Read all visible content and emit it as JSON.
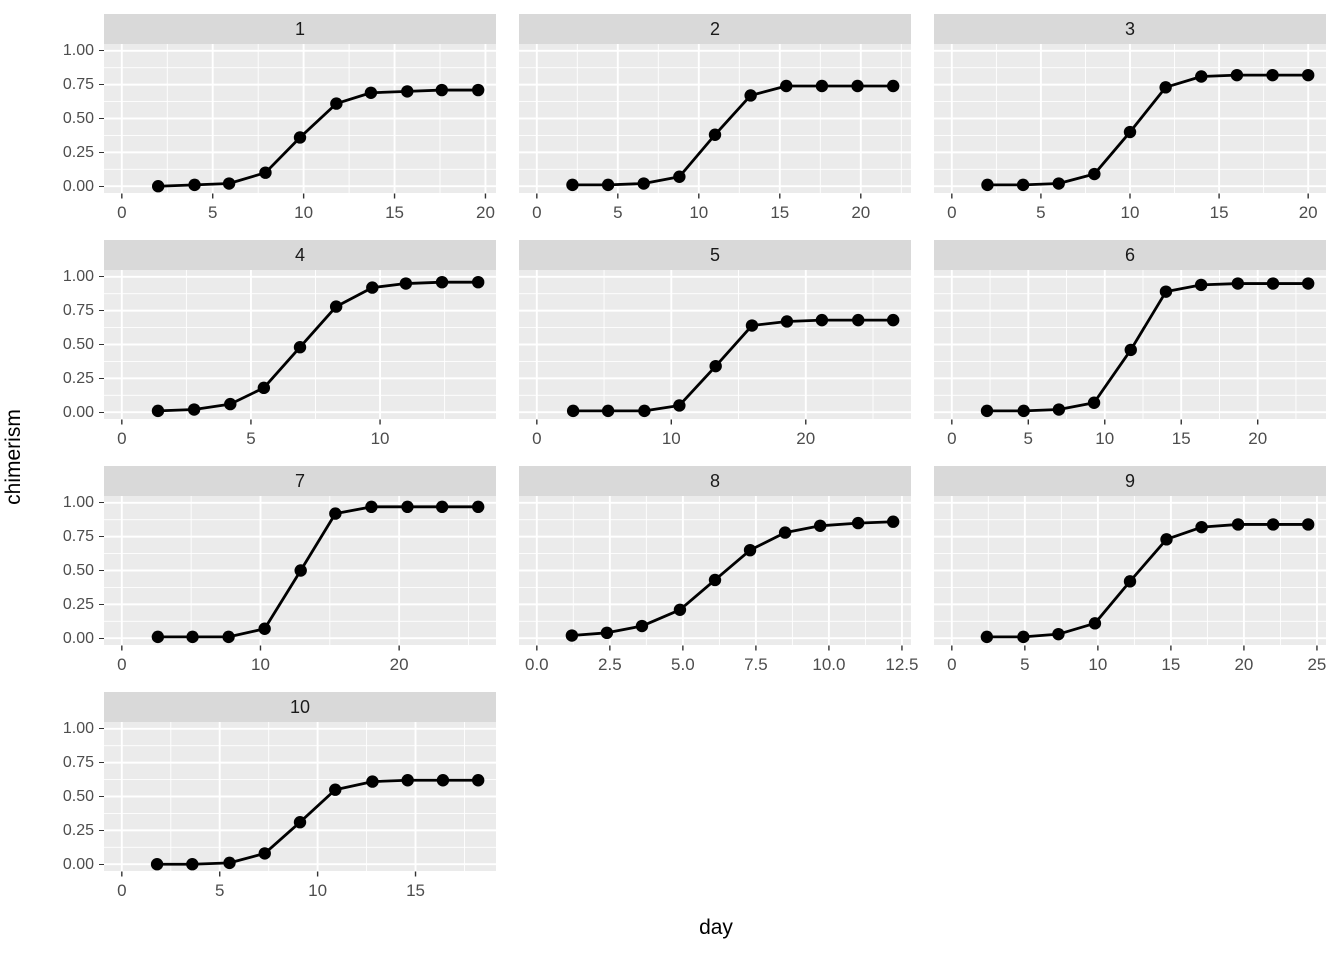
{
  "chart_data": {
    "type": "line",
    "title": "",
    "xlabel": "day",
    "ylabel": "chimerism",
    "grid": "on",
    "legend": "none",
    "style": {
      "panel_bg": "#EBEBEB",
      "strip_bg": "#D9D9D9",
      "grid_color": "#FFFFFF",
      "line_color": "#000000",
      "point_color": "#000000",
      "axis_text_color": "#4D4D4D",
      "tick_mark_color": "#333333"
    },
    "y_axis": {
      "ticks": [
        1.0,
        0.75,
        0.5,
        0.25,
        0.0
      ],
      "tick_labels": [
        "1.00",
        "0.75",
        "0.50",
        "0.25",
        "0.00"
      ],
      "minor_ticks": [
        0.125,
        0.375,
        0.625,
        0.875
      ],
      "ylim": [
        -0.05,
        1.05
      ]
    },
    "facet_layout": [
      [
        0,
        1,
        2
      ],
      [
        3,
        4,
        5
      ],
      [
        6,
        7,
        8
      ],
      [
        9
      ]
    ],
    "facets": [
      {
        "label": "1",
        "x_ticks": [
          0,
          5,
          10,
          15,
          20
        ],
        "x_tick_labels": [
          "0",
          "5",
          "10",
          "15",
          "20"
        ],
        "x_minor_ticks": [
          2.5,
          7.5,
          12.5,
          17.5
        ],
        "x": [
          2.0,
          4.0,
          5.9,
          7.9,
          9.8,
          11.8,
          13.7,
          15.7,
          17.6,
          19.6
        ],
        "y": [
          0.0,
          0.01,
          0.02,
          0.1,
          0.36,
          0.61,
          0.69,
          0.7,
          0.71,
          0.71
        ]
      },
      {
        "label": "2",
        "x_ticks": [
          0,
          5,
          10,
          15,
          20
        ],
        "x_tick_labels": [
          "0",
          "5",
          "10",
          "15",
          "20"
        ],
        "x_minor_ticks": [
          2.5,
          7.5,
          12.5,
          17.5,
          22.5
        ],
        "x": [
          2.2,
          4.4,
          6.6,
          8.8,
          11.0,
          13.2,
          15.4,
          17.6,
          19.8,
          22.0
        ],
        "y": [
          0.01,
          0.01,
          0.02,
          0.07,
          0.38,
          0.67,
          0.74,
          0.74,
          0.74,
          0.74
        ]
      },
      {
        "label": "3",
        "x_ticks": [
          0,
          5,
          10,
          15,
          20
        ],
        "x_tick_labels": [
          "0",
          "5",
          "10",
          "15",
          "20"
        ],
        "x_minor_ticks": [
          2.5,
          7.5,
          12.5,
          17.5
        ],
        "x": [
          2.0,
          4.0,
          6.0,
          8.0,
          10.0,
          12.0,
          14.0,
          16.0,
          18.0,
          20.0
        ],
        "y": [
          0.01,
          0.01,
          0.02,
          0.09,
          0.4,
          0.73,
          0.81,
          0.82,
          0.82,
          0.82
        ]
      },
      {
        "label": "4",
        "x_ticks": [
          0,
          5,
          10
        ],
        "x_tick_labels": [
          "0",
          "5",
          "10"
        ],
        "x_minor_ticks": [
          2.5,
          7.5,
          12.5
        ],
        "x": [
          1.4,
          2.8,
          4.2,
          5.5,
          6.9,
          8.3,
          9.7,
          11.0,
          12.4,
          13.8
        ],
        "y": [
          0.01,
          0.02,
          0.06,
          0.18,
          0.48,
          0.78,
          0.92,
          0.95,
          0.96,
          0.96
        ]
      },
      {
        "label": "5",
        "x_ticks": [
          0,
          10,
          20
        ],
        "x_tick_labels": [
          "0",
          "10",
          "20"
        ],
        "x_minor_ticks": [
          5,
          15,
          25
        ],
        "x": [
          2.7,
          5.3,
          8.0,
          10.6,
          13.3,
          16.0,
          18.6,
          21.2,
          23.9,
          26.5
        ],
        "y": [
          0.01,
          0.01,
          0.01,
          0.05,
          0.34,
          0.64,
          0.67,
          0.68,
          0.68,
          0.68
        ]
      },
      {
        "label": "6",
        "x_ticks": [
          0,
          5,
          10,
          15,
          20
        ],
        "x_tick_labels": [
          "0",
          "5",
          "10",
          "15",
          "20"
        ],
        "x_minor_ticks": [
          2.5,
          7.5,
          12.5,
          17.5,
          22.5
        ],
        "x": [
          2.3,
          4.7,
          7.0,
          9.3,
          11.7,
          14.0,
          16.3,
          18.7,
          21.0,
          23.3
        ],
        "y": [
          0.01,
          0.01,
          0.02,
          0.07,
          0.46,
          0.89,
          0.94,
          0.95,
          0.95,
          0.95
        ]
      },
      {
        "label": "7",
        "x_ticks": [
          0,
          10,
          20
        ],
        "x_tick_labels": [
          "0",
          "10",
          "20"
        ],
        "x_minor_ticks": [
          5,
          15,
          25
        ],
        "x": [
          2.6,
          5.1,
          7.7,
          10.3,
          12.9,
          15.4,
          18.0,
          20.6,
          23.1,
          25.7
        ],
        "y": [
          0.01,
          0.01,
          0.01,
          0.07,
          0.5,
          0.92,
          0.97,
          0.97,
          0.97,
          0.97
        ]
      },
      {
        "label": "8",
        "x_ticks": [
          0,
          2.5,
          5,
          7.5,
          10,
          12.5
        ],
        "x_tick_labels": [
          "0.0",
          "2.5",
          "5.0",
          "7.5",
          "10.0",
          "12.5"
        ],
        "x_minor_ticks": [
          1.25,
          3.75,
          6.25,
          8.75,
          11.25
        ],
        "x": [
          1.2,
          2.4,
          3.6,
          4.9,
          6.1,
          7.3,
          8.5,
          9.7,
          11.0,
          12.2
        ],
        "y": [
          0.02,
          0.04,
          0.09,
          0.21,
          0.43,
          0.65,
          0.78,
          0.83,
          0.85,
          0.86
        ]
      },
      {
        "label": "9",
        "x_ticks": [
          0,
          5,
          10,
          15,
          20,
          25
        ],
        "x_tick_labels": [
          "0",
          "5",
          "10",
          "15",
          "20",
          "25"
        ],
        "x_minor_ticks": [
          2.5,
          7.5,
          12.5,
          17.5,
          22.5
        ],
        "x": [
          2.4,
          4.9,
          7.3,
          9.8,
          12.2,
          14.7,
          17.1,
          19.6,
          22.0,
          24.4
        ],
        "y": [
          0.01,
          0.01,
          0.03,
          0.11,
          0.42,
          0.73,
          0.82,
          0.84,
          0.84,
          0.84
        ]
      },
      {
        "label": "10",
        "x_ticks": [
          0,
          5,
          10,
          15
        ],
        "x_tick_labels": [
          "0",
          "5",
          "10",
          "15"
        ],
        "x_minor_ticks": [
          2.5,
          7.5,
          12.5,
          17.5
        ],
        "x": [
          1.8,
          3.6,
          5.5,
          7.3,
          9.1,
          10.9,
          12.8,
          14.6,
          16.4,
          18.2
        ],
        "y": [
          0.0,
          0.0,
          0.01,
          0.08,
          0.31,
          0.55,
          0.61,
          0.62,
          0.62,
          0.62
        ]
      }
    ]
  }
}
